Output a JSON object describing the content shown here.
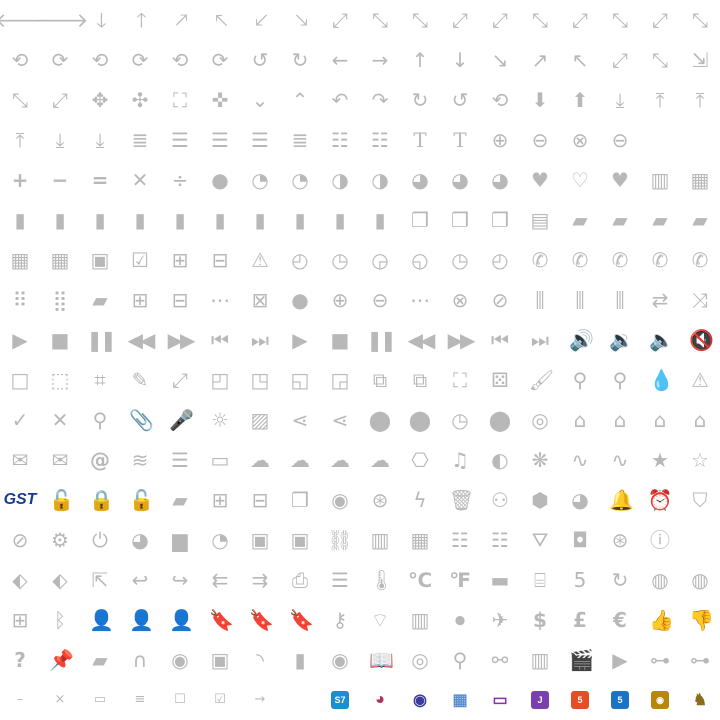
{
  "colors": {
    "icon": "#b8b8b8",
    "icon_dark": "#9a9a9a",
    "s7": "#1a8fd0",
    "js": "#7b3fb0",
    "html5": "#e44d26",
    "css3": "#1a73c4",
    "monkey": "#b8860b",
    "pentaho": "#8a6d1e"
  },
  "rows": [
    [
      "arrow-left-icon",
      "arrow-right-icon",
      "arrow-down-icon",
      "arrow-up-icon",
      "arrow-up-right-icon",
      "arrow-up-left-icon",
      "arrow-down-left-icon",
      "arrow-down-right-icon",
      "expand-diagonal-icon",
      "shrink-diagonal-icon",
      "expand-diagonal-2-icon",
      "expand-diagonal-3-icon",
      "shrink-diagonal-2-icon",
      "shrink-diagonal-3-icon",
      "expand-diagonal-4-icon",
      "arrow-up-left-2-icon",
      "arrow-up-right-2-icon",
      "arrow-down-right-2-icon"
    ],
    [
      "sync-icon",
      "sync-2-icon",
      "sync-3-icon",
      "sync-4-icon",
      "sync-5-icon",
      "sync-6-icon",
      "undo-icon",
      "redo-icon",
      "arrow-left-thin-icon",
      "arrow-right-thin-icon",
      "arrow-up-thin-icon",
      "arrow-down-thin-icon",
      "arrow-down-right-thin-icon",
      "arrow-up-right-thin-icon",
      "arrow-up-left-thin-icon",
      "fullscreen-icon",
      "fullscreen-exit-icon",
      "resize-icon"
    ],
    [
      "expand-icon",
      "contract-icon",
      "move-icon",
      "move-2-icon",
      "fit-icon",
      "compress-icon",
      "chevron-down-icon",
      "chevron-up-icon",
      "reply-icon",
      "forward-icon",
      "rotate-cw-icon",
      "rotate-ccw-icon",
      "history-icon",
      "download-circle-icon",
      "upload-circle-icon",
      "download-tray-icon",
      "upload-tray-icon",
      "upload-line-icon"
    ],
    [
      "arrow-to-top-icon",
      "arrow-to-bottom-icon",
      "arrow-down-bar-icon",
      "align-justify-icon",
      "align-left-icon",
      "align-center-icon",
      "align-right-icon",
      "align-justify-2-icon",
      "list-icon",
      "list-numbered-icon",
      "text-size-icon",
      "text-icon",
      "plus-circle-icon",
      "minus-circle-icon",
      "close-circle-icon",
      "minus-circle-2-icon",
      "",
      ""
    ],
    [
      "plus-icon",
      "minus-icon",
      "equals-icon",
      "times-icon",
      "divide-icon",
      "circle-full-icon",
      "pie-1-icon",
      "pie-2-icon",
      "pie-3-icon",
      "pie-4-icon",
      "pie-5-icon",
      "pie-6-icon",
      "pie-7-icon",
      "heart-icon",
      "heart-outline-icon",
      "heart-broken-icon",
      "map-icon",
      "map-2-icon"
    ],
    [
      "file-icon",
      "file-upload-icon",
      "file-download-icon",
      "file-plus-icon",
      "file-minus-icon",
      "file-alert-icon",
      "file-image-icon",
      "file-more-icon",
      "file-remove-icon",
      "file-block-icon",
      "files-icon",
      "files-star-icon",
      "files-2-icon",
      "file-text-icon",
      "folder-icon",
      "folder-open-icon",
      "folder-upload-icon",
      "folder-minus-icon"
    ],
    [
      "calendar-icon",
      "calendar-2-icon",
      "calendar-day-icon",
      "calendar-check-icon",
      "calendar-plus-icon",
      "calendar-minus-icon",
      "calendar-alert-icon",
      "clock-1-icon",
      "clock-2-icon",
      "clock-3-icon",
      "clock-4-icon",
      "clock-5-icon",
      "clock-6-icon",
      "phone-icon",
      "phone-incoming-icon",
      "phone-outgoing-icon",
      "phone-missed-icon",
      "phone-more-icon"
    ],
    [
      "grid-icon",
      "dialpad-icon",
      "comment-icon",
      "comment-plus-icon",
      "comment-minus-icon",
      "comment-more-icon",
      "comment-close-icon",
      "bubble-icon",
      "bubble-plus-icon",
      "bubble-minus-icon",
      "bubble-more-icon",
      "bubble-close-icon",
      "block-icon",
      "equalizer-icon",
      "equalizer-2-icon",
      "equalizer-3-icon",
      "repeat-icon",
      "shuffle-icon"
    ],
    [
      "play-icon",
      "stop-icon",
      "pause-icon",
      "rewind-icon",
      "fast-forward-icon",
      "skip-back-icon",
      "skip-forward-icon",
      "play-2-icon",
      "stop-2-icon",
      "pause-2-icon",
      "rewind-2-icon",
      "fast-forward-2-icon",
      "skip-back-2-icon",
      "skip-forward-2-icon",
      "volume-high-icon",
      "volume-low-icon",
      "volume-off-icon",
      "volume-mute-icon"
    ],
    [
      "square-outline-icon",
      "selection-icon",
      "crop-icon",
      "pencil-icon",
      "resize-line-icon",
      "corner-top-left-icon",
      "corner-top-right-icon",
      "corner-bottom-left-icon",
      "corner-bottom-right-icon",
      "copy-plus-icon",
      "copy-minus-icon",
      "focus-icon",
      "dice-icon",
      "brush-icon",
      "zoom-in-icon",
      "zoom-out-icon",
      "drop-icon",
      "warning-icon"
    ],
    [
      "check-icon",
      "close-icon",
      "search-icon",
      "paperclip-icon",
      "microphone-icon",
      "sun-icon",
      "image-icon",
      "share-icon",
      "share-2-icon",
      "location-pin-icon",
      "location-pin-2-icon",
      "location-time-icon",
      "location-user-icon",
      "target-icon",
      "home-icon",
      "home-2-icon",
      "home-outline-icon",
      "home-3-icon"
    ],
    [
      "mail-icon",
      "mail-stack-icon",
      "at-icon",
      "layers-icon",
      "database-icon",
      "tape-icon",
      "cloud-icon",
      "cloud-download-icon",
      "cloud-upload-icon",
      "cloud-sync-icon",
      "camera-icon",
      "music-icon",
      "contrast-icon",
      "flower-icon",
      "wave-icon",
      "wave-2-icon",
      "star-icon",
      "star-outline-icon"
    ],
    [
      "gsf-logo-icon",
      "unlock-icon",
      "lock-icon",
      "unlock-2-icon",
      "note-icon",
      "note-plus-icon",
      "note-minus-icon",
      "copy-icon",
      "eye-icon",
      "lifebuoy-icon",
      "flash-icon",
      "trash-icon",
      "disguise-icon",
      "box-icon",
      "gauge-icon",
      "bell-icon",
      "alarm-icon",
      "shield-icon"
    ],
    [
      "compass-icon",
      "film-reel-icon",
      "power-icon",
      "pie-chart-icon",
      "bar-chart-icon",
      "speedometer-icon",
      "briefcase-icon",
      "briefcase-2-icon",
      "link-icon",
      "equalizer-bars-icon",
      "table-icon",
      "list-view-icon",
      "list-view-2-icon",
      "basket-icon",
      "bag-icon",
      "aperture-icon",
      "info-icon",
      ""
    ],
    [
      "tag-icon",
      "tags-icon",
      "share-box-icon",
      "reply-2-icon",
      "forward-2-icon",
      "reply-all-icon",
      "forward-all-icon",
      "printer-icon",
      "server-icon",
      "thermometer-icon",
      "celsius-icon",
      "fahrenheit-icon",
      "keyboard-icon",
      "radio-icon",
      "number-icon",
      "rotate-icon",
      "globe-icon",
      "globe-2-icon"
    ],
    [
      "windows-icon",
      "bluetooth-icon",
      "user-icon",
      "user-plus-icon",
      "user-minus-icon",
      "bookmark-icon",
      "bookmark-plus-icon",
      "bookmark-minus-icon",
      "key-icon",
      "wifi-icon",
      "film-icon",
      "video-icon",
      "airplane-icon",
      "dollar-icon",
      "pound-icon",
      "euro-icon",
      "thumbs-up-icon",
      "thumbs-down-icon"
    ],
    [
      "question-icon",
      "pushpin-icon",
      "sd-card-icon",
      "magnet-icon",
      "webcam-icon",
      "wallet-icon",
      "rss-icon",
      "zip-file-icon",
      "record-icon",
      "book-icon",
      "sync-circle-icon",
      "keyhole-icon",
      "glasses-icon",
      "piano-icon",
      "clapperboard-icon",
      "video-play-icon",
      "network-icon",
      "network-2-icon"
    ],
    [
      "minus-small-icon",
      "close-small-icon",
      "window-icon",
      "menu-small-icon",
      "checkbox-empty-icon",
      "checkbox-checked-icon",
      "arrow-small-icon",
      "",
      "s7-logo-icon",
      "fruit-logo-icon",
      "eclipse-logo-icon",
      "app-grid-logo-icon",
      "screen-logo-icon",
      "js-logo-icon",
      "html5-logo-icon",
      "css3-logo-icon",
      "monkey-logo-icon",
      "elephant-logo-icon"
    ]
  ],
  "glyphs": {
    "arrow-left-icon": "🡐",
    "arrow-right-icon": "🡒",
    "arrow-down-icon": "🡓",
    "arrow-up-icon": "🡑",
    "arrow-up-right-icon": "🡕",
    "arrow-up-left-icon": "🡔",
    "arrow-down-left-icon": "🡗",
    "arrow-down-right-icon": "🡖",
    "expand-diagonal-icon": "⤢",
    "shrink-diagonal-icon": "⤡",
    "expand-diagonal-2-icon": "⤡",
    "expand-diagonal-3-icon": "⤢",
    "shrink-diagonal-2-icon": "⤢",
    "shrink-diagonal-3-icon": "⤡",
    "expand-diagonal-4-icon": "⤢",
    "arrow-up-left-2-icon": "⤡",
    "arrow-up-right-2-icon": "⤢",
    "arrow-down-right-2-icon": "⤡",
    "sync-icon": "⟲",
    "sync-2-icon": "⟳",
    "sync-3-icon": "⟲",
    "sync-4-icon": "⟳",
    "sync-5-icon": "⟲",
    "sync-6-icon": "⟳",
    "undo-icon": "↺",
    "redo-icon": "↻",
    "arrow-left-thin-icon": "←",
    "arrow-right-thin-icon": "→",
    "arrow-up-thin-icon": "↑",
    "arrow-down-thin-icon": "↓",
    "arrow-down-right-thin-icon": "↘",
    "arrow-up-right-thin-icon": "↗",
    "arrow-up-left-thin-icon": "↖",
    "fullscreen-icon": "⤢",
    "fullscreen-exit-icon": "⤡",
    "resize-icon": "⇲",
    "expand-icon": "⤡",
    "contract-icon": "⤢",
    "move-icon": "✥",
    "move-2-icon": "✣",
    "fit-icon": "⛶",
    "compress-icon": "✜",
    "chevron-down-icon": "⌄",
    "chevron-up-icon": "⌃",
    "reply-icon": "↶",
    "forward-icon": "↷",
    "rotate-cw-icon": "↻",
    "rotate-ccw-icon": "↺",
    "history-icon": "⟲",
    "download-circle-icon": "⬇",
    "upload-circle-icon": "⬆",
    "download-tray-icon": "⤓",
    "upload-tray-icon": "⤒",
    "upload-line-icon": "⤒",
    "arrow-to-top-icon": "⤒",
    "arrow-to-bottom-icon": "⤓",
    "arrow-down-bar-icon": "⤓",
    "align-justify-icon": "≣",
    "align-left-icon": "☰",
    "align-center-icon": "☰",
    "align-right-icon": "☰",
    "align-justify-2-icon": "≣",
    "list-icon": "☷",
    "list-numbered-icon": "☷",
    "text-size-icon": "T",
    "text-icon": "T",
    "plus-circle-icon": "⊕",
    "minus-circle-icon": "⊖",
    "close-circle-icon": "⊗",
    "minus-circle-2-icon": "⊖",
    "plus-icon": "+",
    "minus-icon": "−",
    "equals-icon": "=",
    "times-icon": "✕",
    "divide-icon": "÷",
    "circle-full-icon": "●",
    "pie-1-icon": "◔",
    "pie-2-icon": "◔",
    "pie-3-icon": "◑",
    "pie-4-icon": "◑",
    "pie-5-icon": "◕",
    "pie-6-icon": "◕",
    "pie-7-icon": "◕",
    "heart-icon": "♥",
    "heart-outline-icon": "♡",
    "heart-broken-icon": "♥",
    "map-icon": "▥",
    "map-2-icon": "▦",
    "file-icon": "▮",
    "file-upload-icon": "▮",
    "file-download-icon": "▮",
    "file-plus-icon": "▮",
    "file-minus-icon": "▮",
    "file-alert-icon": "▮",
    "file-image-icon": "▮",
    "file-more-icon": "▮",
    "file-remove-icon": "▮",
    "file-block-icon": "▮",
    "files-icon": "❐",
    "files-star-icon": "❐",
    "files-2-icon": "❐",
    "file-text-icon": "▤",
    "folder-icon": "▰",
    "folder-open-icon": "▰",
    "folder-upload-icon": "▰",
    "folder-minus-icon": "▰",
    "calendar-icon": "▦",
    "calendar-2-icon": "▦",
    "calendar-day-icon": "▣",
    "calendar-check-icon": "☑",
    "calendar-plus-icon": "⊞",
    "calendar-minus-icon": "⊟",
    "calendar-alert-icon": "⚠",
    "clock-1-icon": "◴",
    "clock-2-icon": "◷",
    "clock-3-icon": "◶",
    "clock-4-icon": "◵",
    "clock-5-icon": "◷",
    "clock-6-icon": "◴",
    "phone-icon": "✆",
    "phone-incoming-icon": "✆",
    "phone-outgoing-icon": "✆",
    "phone-missed-icon": "✆",
    "phone-more-icon": "✆",
    "grid-icon": "⠿",
    "dialpad-icon": "⣿",
    "comment-icon": "▰",
    "comment-plus-icon": "⊞",
    "comment-minus-icon": "⊟",
    "comment-more-icon": "⋯",
    "comment-close-icon": "⊠",
    "bubble-icon": "●",
    "bubble-plus-icon": "⊕",
    "bubble-minus-icon": "⊖",
    "bubble-more-icon": "⋯",
    "bubble-close-icon": "⊗",
    "block-icon": "⊘",
    "equalizer-icon": "⫼",
    "equalizer-2-icon": "⫼",
    "equalizer-3-icon": "⫼",
    "repeat-icon": "⇄",
    "shuffle-icon": "⤨",
    "play-icon": "▶",
    "stop-icon": "■",
    "pause-icon": "❚❚",
    "rewind-icon": "◀◀",
    "fast-forward-icon": "▶▶",
    "skip-back-icon": "⏮",
    "skip-forward-icon": "⏭",
    "play-2-icon": "▶",
    "stop-2-icon": "■",
    "pause-2-icon": "❚❚",
    "rewind-2-icon": "◀◀",
    "fast-forward-2-icon": "▶▶",
    "skip-back-2-icon": "⏮",
    "skip-forward-2-icon": "⏭",
    "volume-high-icon": "🔊",
    "volume-low-icon": "🔉",
    "volume-off-icon": "🔈",
    "volume-mute-icon": "🔇",
    "square-outline-icon": "□",
    "selection-icon": "⬚",
    "crop-icon": "⌗",
    "pencil-icon": "✎",
    "resize-line-icon": "⤢",
    "corner-top-left-icon": "◰",
    "corner-top-right-icon": "◳",
    "corner-bottom-left-icon": "◱",
    "corner-bottom-right-icon": "◲",
    "copy-plus-icon": "⧉",
    "copy-minus-icon": "⧉",
    "focus-icon": "⛶",
    "dice-icon": "⚄",
    "brush-icon": "🖌",
    "zoom-in-icon": "⚲",
    "zoom-out-icon": "⚲",
    "drop-icon": "💧",
    "warning-icon": "⚠",
    "check-icon": "✓",
    "close-icon": "✕",
    "search-icon": "⚲",
    "paperclip-icon": "📎",
    "microphone-icon": "🎤",
    "sun-icon": "☼",
    "image-icon": "▨",
    "share-icon": "⋖",
    "share-2-icon": "⋖",
    "location-pin-icon": "⬤",
    "location-pin-2-icon": "⬤",
    "location-time-icon": "◷",
    "location-user-icon": "⬤",
    "target-icon": "◎",
    "home-icon": "⌂",
    "home-2-icon": "⌂",
    "home-outline-icon": "⌂",
    "home-3-icon": "⌂",
    "mail-icon": "✉",
    "mail-stack-icon": "✉",
    "at-icon": "@",
    "layers-icon": "≋",
    "database-icon": "☰",
    "tape-icon": "▭",
    "cloud-icon": "☁",
    "cloud-download-icon": "☁",
    "cloud-upload-icon": "☁",
    "cloud-sync-icon": "☁",
    "camera-icon": "⎔",
    "music-icon": "♫",
    "contrast-icon": "◐",
    "flower-icon": "❋",
    "wave-icon": "∿",
    "wave-2-icon": "∿",
    "star-icon": "★",
    "star-outline-icon": "☆",
    "gsf-logo-icon": "GST",
    "unlock-icon": "🔓",
    "lock-icon": "🔒",
    "unlock-2-icon": "🔓",
    "note-icon": "▰",
    "note-plus-icon": "⊞",
    "note-minus-icon": "⊟",
    "copy-icon": "❐",
    "eye-icon": "◉",
    "lifebuoy-icon": "⊛",
    "flash-icon": "ϟ",
    "trash-icon": "🗑",
    "disguise-icon": "⚇",
    "box-icon": "⬢",
    "gauge-icon": "◕",
    "bell-icon": "🔔",
    "alarm-icon": "⏰",
    "shield-icon": "⛉",
    "compass-icon": "⊘",
    "film-reel-icon": "⚙",
    "power-icon": "⏻",
    "pie-chart-icon": "◕",
    "bar-chart-icon": "▆",
    "speedometer-icon": "◔",
    "briefcase-icon": "▣",
    "briefcase-2-icon": "▣",
    "link-icon": "⛓",
    "equalizer-bars-icon": "▥",
    "table-icon": "▦",
    "list-view-icon": "☷",
    "list-view-2-icon": "☷",
    "basket-icon": "⛛",
    "bag-icon": "◘",
    "aperture-icon": "⊛",
    "info-icon": "ⓘ",
    "tag-icon": "⬖",
    "tags-icon": "⬖",
    "share-box-icon": "⇱",
    "reply-2-icon": "↩",
    "forward-2-icon": "↪",
    "reply-all-icon": "⇇",
    "forward-all-icon": "⇉",
    "printer-icon": "⎙",
    "server-icon": "☰",
    "thermometer-icon": "🌡",
    "celsius-icon": "℃",
    "fahrenheit-icon": "℉",
    "keyboard-icon": "▬",
    "radio-icon": "⌸",
    "number-icon": "5",
    "rotate-icon": "↻",
    "globe-icon": "◍",
    "globe-2-icon": "◍",
    "windows-icon": "⊞",
    "bluetooth-icon": "ᛒ",
    "user-icon": "👤",
    "user-plus-icon": "👤",
    "user-minus-icon": "👤",
    "bookmark-icon": "🔖",
    "bookmark-plus-icon": "🔖",
    "bookmark-minus-icon": "🔖",
    "key-icon": "⚷",
    "wifi-icon": "⌔",
    "film-icon": "▥",
    "video-icon": "⏺",
    "airplane-icon": "✈",
    "dollar-icon": "$",
    "pound-icon": "£",
    "euro-icon": "€",
    "thumbs-up-icon": "👍",
    "thumbs-down-icon": "👎",
    "question-icon": "?",
    "pushpin-icon": "📌",
    "sd-card-icon": "▰",
    "magnet-icon": "∩",
    "webcam-icon": "◉",
    "wallet-icon": "▣",
    "rss-icon": "◝",
    "zip-file-icon": "▮",
    "record-icon": "◉",
    "book-icon": "📖",
    "sync-circle-icon": "◎",
    "keyhole-icon": "⚲",
    "glasses-icon": "⚯",
    "piano-icon": "▥",
    "clapperboard-icon": "🎬",
    "video-play-icon": "▶",
    "network-icon": "⊶",
    "network-2-icon": "⊶",
    "minus-small-icon": "–",
    "close-small-icon": "×",
    "window-icon": "▭",
    "menu-small-icon": "≡",
    "checkbox-empty-icon": "☐",
    "checkbox-checked-icon": "☑",
    "arrow-small-icon": "→",
    "s7-logo-icon": "S7",
    "fruit-logo-icon": "◕",
    "eclipse-logo-icon": "◉",
    "app-grid-logo-icon": "▦",
    "screen-logo-icon": "▭",
    "js-logo-icon": "J",
    "html5-logo-icon": "5",
    "css3-logo-icon": "5",
    "monkey-logo-icon": "◉",
    "elephant-logo-icon": "♞"
  }
}
